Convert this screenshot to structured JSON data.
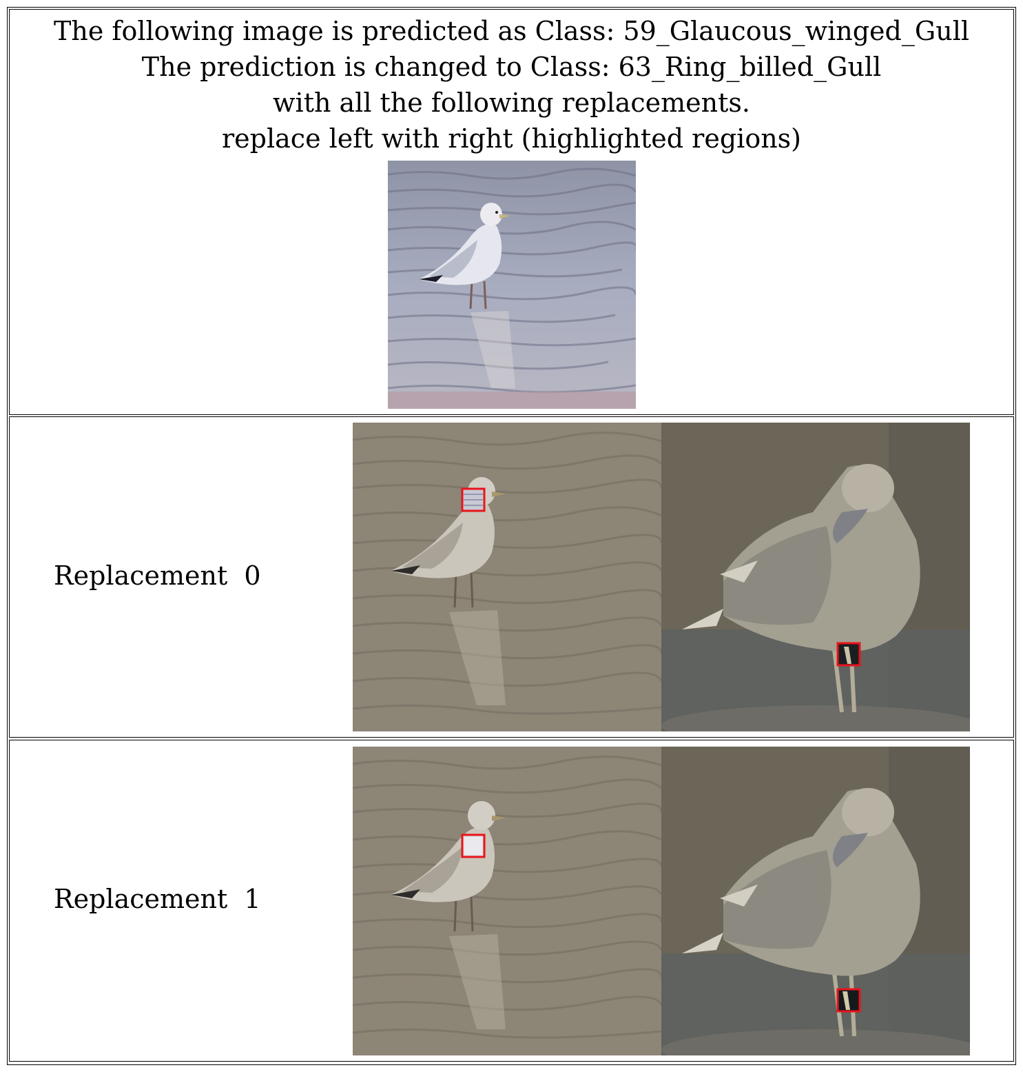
{
  "header": {
    "line1": "The following image is predicted as Class: 59_Glaucous_winged_Gull",
    "line2": "The prediction is changed to Class: 63_Ring_billed_Gull",
    "line3": "with all the following replacements.",
    "line4": "replace left with right (highlighted regions)"
  },
  "replacements": [
    {
      "label": "Replacement  0"
    },
    {
      "label": "Replacement  1"
    }
  ],
  "colors": {
    "highlight_box": "#e8141a",
    "water": "#9ea4b8",
    "dim_overlay": "#8a8070"
  }
}
